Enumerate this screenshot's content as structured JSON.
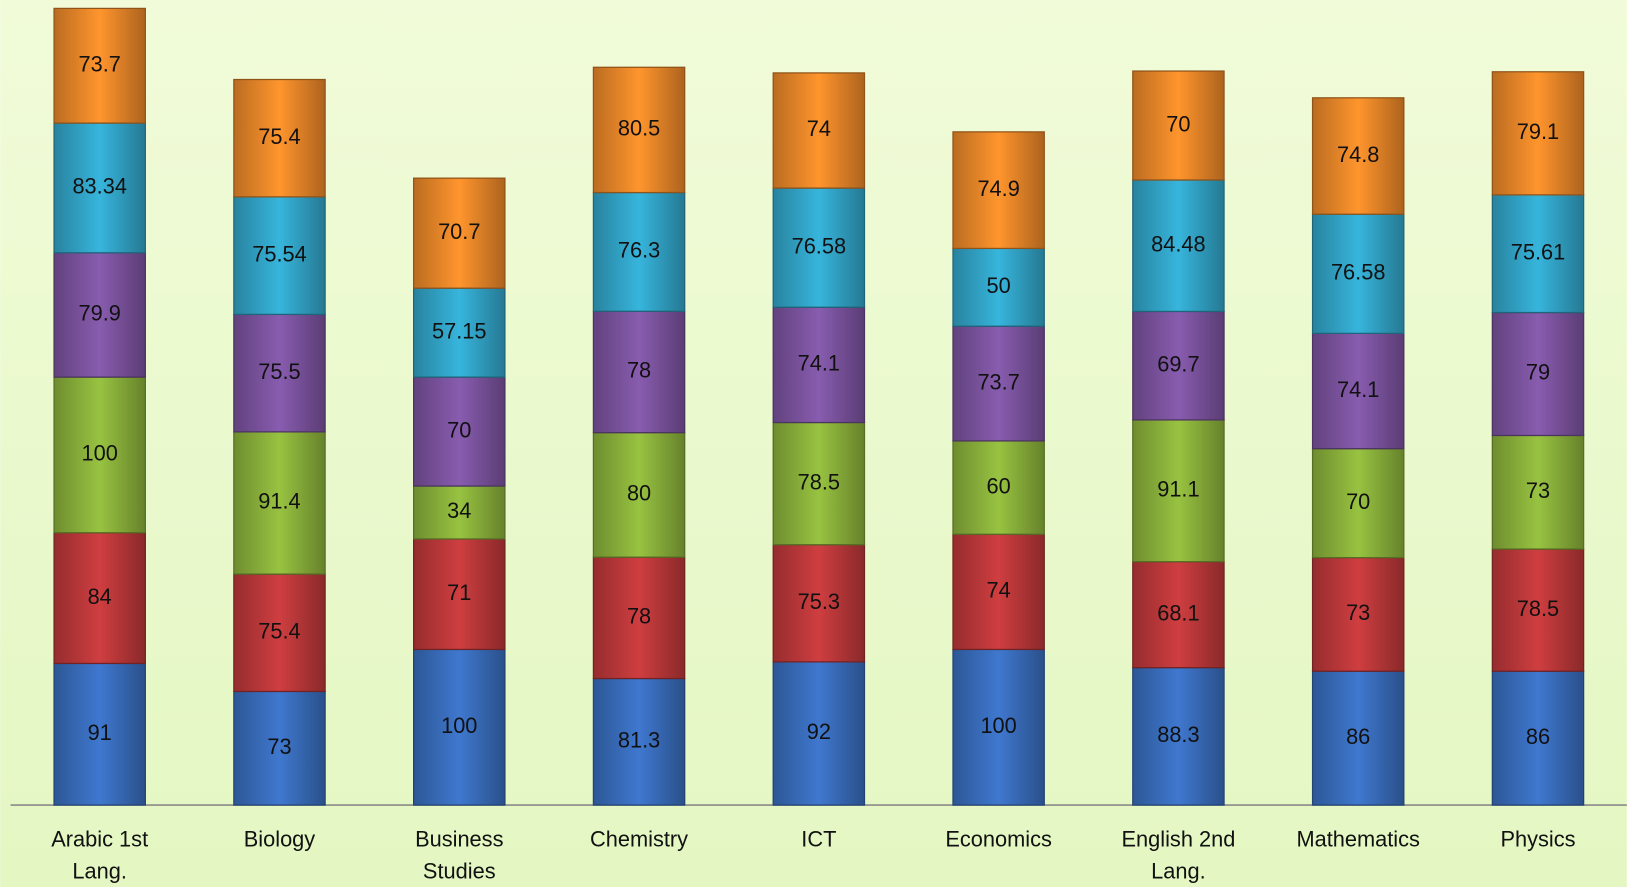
{
  "chart_data": {
    "type": "stacked_bar",
    "categories": [
      "Arabic 1st Lang.",
      "Biology",
      "Business Studies",
      "Chemistry",
      "ICT",
      "Economics",
      "English 2nd Lang.",
      "Mathematics",
      "Physics"
    ],
    "series": [
      {
        "color": "#3a6fc0",
        "values": [
          91,
          73,
          100,
          81.3,
          92,
          100,
          88.3,
          86,
          86
        ]
      },
      {
        "color": "#c0393b",
        "values": [
          84,
          75.4,
          71,
          78,
          75.3,
          74,
          68.1,
          73,
          78.5
        ]
      },
      {
        "color": "#8db53c",
        "values": [
          100,
          91.4,
          34,
          80,
          78.5,
          60,
          91.1,
          70,
          73
        ]
      },
      {
        "color": "#7e55a2",
        "values": [
          79.9,
          75.5,
          70,
          78,
          74.1,
          73.7,
          69.7,
          74.1,
          79
        ]
      },
      {
        "color": "#33a8cc",
        "values": [
          83.34,
          75.54,
          57.15,
          76.3,
          76.58,
          50,
          84.48,
          76.58,
          75.61
        ]
      },
      {
        "color": "#f08a2a",
        "values": [
          73.7,
          75.4,
          70.7,
          80.5,
          74,
          74.9,
          70,
          74.8,
          79.1
        ]
      }
    ],
    "ylim": [
      0,
      520
    ]
  }
}
